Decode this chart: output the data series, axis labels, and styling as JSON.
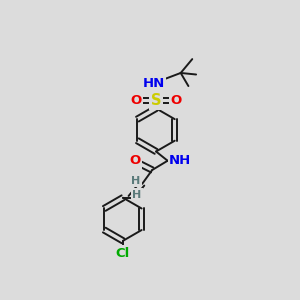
{
  "background_color": "#dcdcdc",
  "figure_size": [
    3.0,
    3.0
  ],
  "dpi": 100,
  "atom_colors": {
    "C": "#1a1a1a",
    "H": "#5a7a7a",
    "N": "#0000ee",
    "O": "#ee0000",
    "S": "#cccc00",
    "Cl": "#00aa00"
  },
  "bond_color": "#1a1a1a",
  "bond_width": 1.4,
  "font_size_main": 9.5,
  "font_size_small": 8.0
}
